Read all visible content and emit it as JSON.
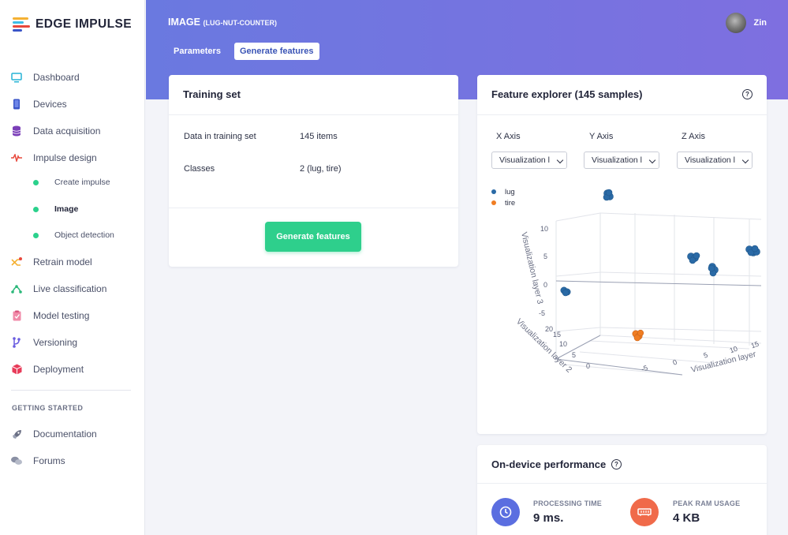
{
  "app": {
    "name": "EDGE IMPULSE"
  },
  "sidebar": {
    "items": [
      {
        "label": "Dashboard"
      },
      {
        "label": "Devices"
      },
      {
        "label": "Data acquisition"
      },
      {
        "label": "Impulse design"
      },
      {
        "label": "Create impulse"
      },
      {
        "label": "Image"
      },
      {
        "label": "Object detection"
      },
      {
        "label": "Retrain model"
      },
      {
        "label": "Live classification"
      },
      {
        "label": "Model testing"
      },
      {
        "label": "Versioning"
      },
      {
        "label": "Deployment"
      }
    ],
    "section_label": "GETTING STARTED",
    "footer_items": [
      {
        "label": "Documentation"
      },
      {
        "label": "Forums"
      }
    ]
  },
  "header": {
    "title": "IMAGE",
    "project": "(LUG-NUT-COUNTER)",
    "tabs": [
      {
        "label": "Parameters"
      },
      {
        "label": "Generate features"
      }
    ],
    "user": "Zin"
  },
  "training_set": {
    "title": "Training set",
    "rows": [
      {
        "label": "Data in training set",
        "value": "145 items"
      },
      {
        "label": "Classes",
        "value": "2 (lug, tire)"
      }
    ],
    "button_label": "Generate features"
  },
  "feature_explorer": {
    "title": "Feature explorer (145 samples)",
    "help": "?",
    "axes": [
      {
        "label": "X Axis",
        "selected": "Visualization l"
      },
      {
        "label": "Y Axis",
        "selected": "Visualization l"
      },
      {
        "label": "Z Axis",
        "selected": "Visualization l"
      }
    ],
    "legend": [
      {
        "name": "lug",
        "color": "#2a6aa6"
      },
      {
        "name": "tire",
        "color": "#f07d22"
      }
    ],
    "plot": {
      "axis_x_title": "Visualization layer",
      "axis_y_title": "Visualization layer 2",
      "axis_z_title": "Visualization layer 3",
      "x_ticks": [
        "-5",
        "0",
        "5",
        "10",
        "15"
      ],
      "y_ticks": [
        "0",
        "5",
        "10",
        "15",
        "20"
      ],
      "z_ticks": [
        "10",
        "5",
        "0",
        "-5"
      ]
    }
  },
  "performance": {
    "title": "On-device performance",
    "help": "?",
    "metrics": [
      {
        "label": "PROCESSING TIME",
        "value": "9 ms.",
        "color": "#5b6ee0",
        "icon": "clock-icon"
      },
      {
        "label": "PEAK RAM USAGE",
        "value": "4 KB",
        "color": "#f06a4a",
        "icon": "ram-icon"
      }
    ]
  },
  "colors": {
    "accent": "#6a79e0",
    "green": "#2ecf8c",
    "lug": "#2a6aa6",
    "tire": "#f07d22"
  }
}
